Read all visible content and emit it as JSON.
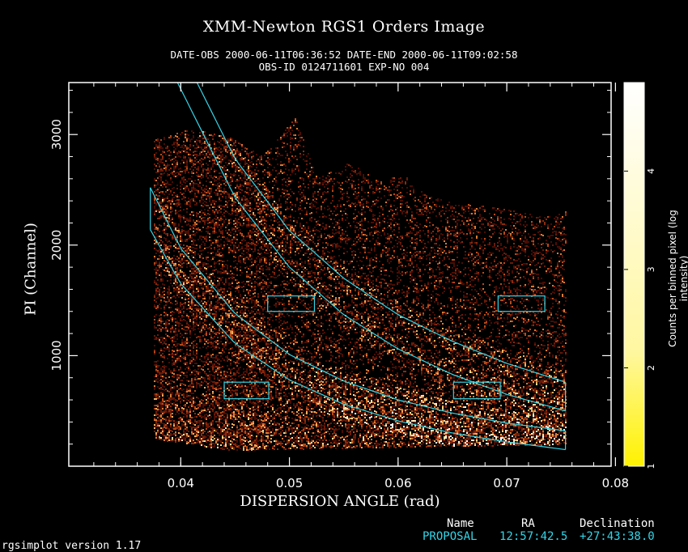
{
  "header": {
    "title": "XMM-Newton  RGS1 Orders Image",
    "line1": "DATE-OBS 2000-06-11T06:36:52   DATE-END 2000-06-11T09:02:58",
    "line2": "OBS-ID 0124711601 EXP-NO 004"
  },
  "chart_data": {
    "type": "heatmap",
    "title": "XMM-Newton  RGS1 Orders Image",
    "xlabel": "DISPERSION ANGLE (rad)",
    "ylabel": "PI (Channel)",
    "xlim": [
      0.0297,
      0.0796
    ],
    "ylim": [
      0,
      3470
    ],
    "x_ticks": [
      0.04,
      0.05,
      0.06,
      0.07,
      0.08
    ],
    "x_tick_labels": [
      "0.04",
      "0.05",
      "0.06",
      "0.07",
      "0.08"
    ],
    "y_ticks": [
      1000,
      2000,
      3000
    ],
    "y_tick_labels": [
      "1000",
      "2000",
      "3000"
    ],
    "colorbar": {
      "label": "Counts per binned pixel (log intensity)",
      "ticks": [
        1,
        2,
        3,
        4
      ],
      "tick_labels": [
        "1",
        "2",
        "3",
        "4"
      ],
      "range": [
        1,
        4.9
      ]
    },
    "data_region": {
      "x_range": [
        0.0375,
        0.0754
      ],
      "upper_edge": [
        [
          0.0375,
          2950
        ],
        [
          0.041,
          3050
        ],
        [
          0.0445,
          2970
        ],
        [
          0.0475,
          2800
        ],
        [
          0.0505,
          3150
        ],
        [
          0.0525,
          2600
        ],
        [
          0.0555,
          2750
        ],
        [
          0.058,
          2580
        ],
        [
          0.0605,
          2630
        ],
        [
          0.0625,
          2450
        ],
        [
          0.065,
          2380
        ],
        [
          0.068,
          2350
        ],
        [
          0.071,
          2300
        ],
        [
          0.0735,
          2250
        ],
        [
          0.0754,
          2300
        ]
      ],
      "lower_edge": [
        [
          0.0375,
          250
        ],
        [
          0.0445,
          150
        ],
        [
          0.0754,
          200
        ]
      ]
    },
    "order_regions": [
      {
        "name": "order1-upper",
        "curve": [
          [
            0.0372,
            2520
          ],
          [
            0.04,
            1970
          ],
          [
            0.045,
            1380
          ],
          [
            0.05,
            1010
          ],
          [
            0.055,
            770
          ],
          [
            0.06,
            600
          ],
          [
            0.065,
            480
          ],
          [
            0.07,
            390
          ],
          [
            0.0754,
            320
          ]
        ]
      },
      {
        "name": "order1-lower",
        "curve": [
          [
            0.0372,
            2140
          ],
          [
            0.04,
            1650
          ],
          [
            0.045,
            1110
          ],
          [
            0.05,
            780
          ],
          [
            0.055,
            560
          ],
          [
            0.06,
            410
          ],
          [
            0.065,
            300
          ],
          [
            0.07,
            220
          ],
          [
            0.0754,
            150
          ]
        ]
      },
      {
        "name": "order2-upper",
        "curve": [
          [
            0.0415,
            3470
          ],
          [
            0.045,
            2780
          ],
          [
            0.05,
            2130
          ],
          [
            0.055,
            1700
          ],
          [
            0.06,
            1370
          ],
          [
            0.065,
            1130
          ],
          [
            0.07,
            930
          ],
          [
            0.0754,
            760
          ]
        ]
      },
      {
        "name": "order2-lower",
        "curve": [
          [
            0.0397,
            3470
          ],
          [
            0.045,
            2430
          ],
          [
            0.05,
            1800
          ],
          [
            0.055,
            1370
          ],
          [
            0.06,
            1060
          ],
          [
            0.065,
            830
          ],
          [
            0.07,
            650
          ],
          [
            0.0754,
            500
          ]
        ]
      }
    ],
    "boxes": [
      {
        "x0": 0.048,
        "x1": 0.0523,
        "y0": 1400,
        "y1": 1540
      },
      {
        "x0": 0.0692,
        "x1": 0.0735,
        "y0": 1400,
        "y1": 1540
      },
      {
        "x0": 0.044,
        "x1": 0.0481,
        "y0": 610,
        "y1": 760
      },
      {
        "x0": 0.0651,
        "x1": 0.0694,
        "y0": 610,
        "y1": 760
      }
    ]
  },
  "source": {
    "headers": [
      "Name",
      "RA",
      "Declination"
    ],
    "values": [
      "PROPOSAL",
      "12:57:42.5",
      "+27:43:38.0"
    ]
  },
  "footer": "rgsimplot version 1.17",
  "colors": {
    "overlay": "#33d6e8",
    "counts_low": "#5a1206",
    "counts_high": "#fff0c8"
  }
}
